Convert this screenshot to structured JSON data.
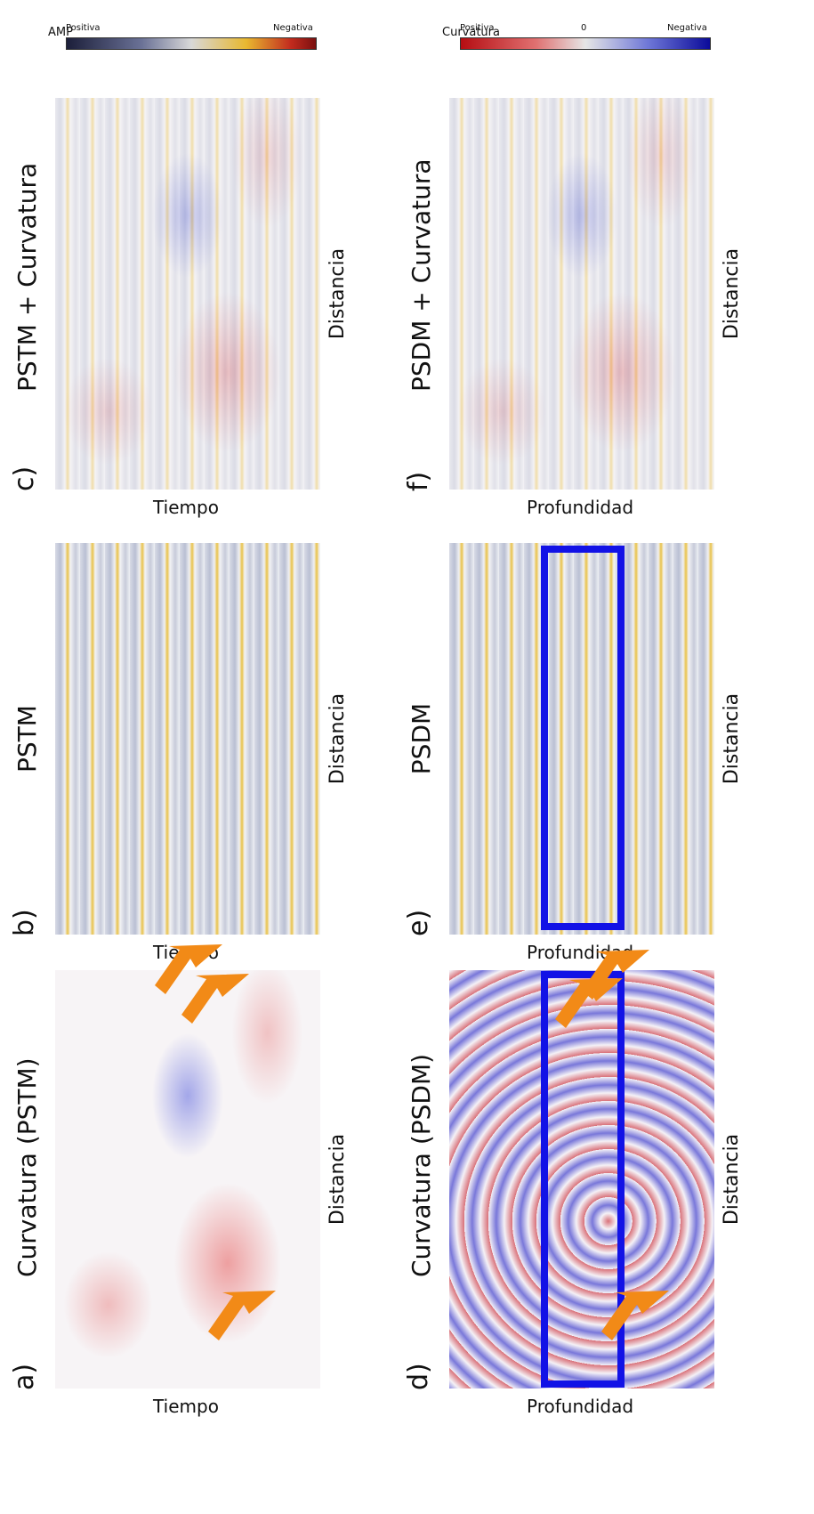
{
  "panels": [
    {
      "letter": "a)",
      "title": "Curvatura (PSTM)",
      "y_label": "Tiempo",
      "x_label": "Distancia"
    },
    {
      "letter": "b)",
      "title": "PSTM",
      "y_label": "Tiempo",
      "x_label": "Distancia"
    },
    {
      "letter": "c)",
      "title": "PSTM + Curvatura",
      "y_label": "Tiempo",
      "x_label": "Distancia"
    },
    {
      "letter": "d)",
      "title": "Curvatura (PSDM)",
      "y_label": "Profundidad",
      "x_label": "Distancia"
    },
    {
      "letter": "e)",
      "title": "PSDM",
      "y_label": "Profundidad",
      "x_label": "Distancia"
    },
    {
      "letter": "f)",
      "title": "PSDM + Curvatura",
      "y_label": "Profundidad",
      "x_label": "Distancia"
    }
  ],
  "colorbars": [
    {
      "title": "AMP",
      "min_label": "Positiva",
      "max_label": "Negativa"
    },
    {
      "title": "Curvatura",
      "min_label": "Positiva",
      "mid_label": "0",
      "max_label": "Negativa"
    }
  ]
}
